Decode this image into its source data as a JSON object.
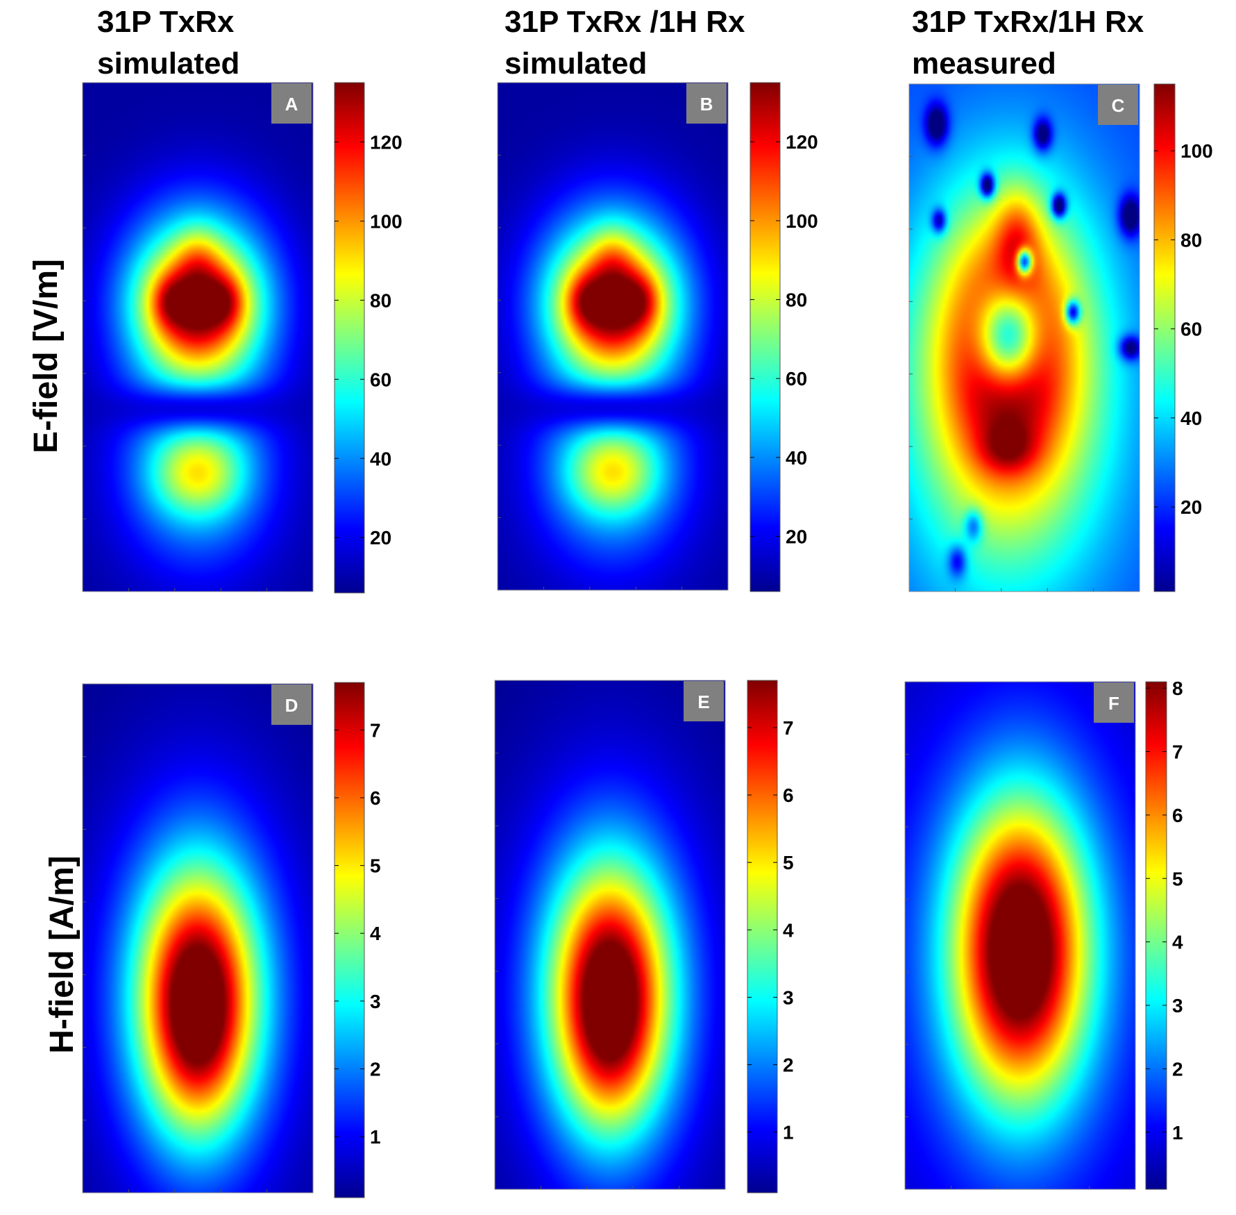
{
  "figure": {
    "row_labels": [
      "E-field [V/m]",
      "H-field [A/m]"
    ]
  },
  "chart_data": [
    {
      "type": "heatmap",
      "panel": "A",
      "title": [
        "31P TxRx",
        "simulated"
      ],
      "row_label": "E-field [V/m]",
      "colormap": "jet",
      "colorbar": {
        "range": [
          6,
          135
        ],
        "ticks": [
          20,
          40,
          60,
          80,
          100,
          120
        ]
      },
      "features": [
        {
          "kind": "lobe",
          "cx": 0.5,
          "cy": 0.43,
          "rx": 0.4,
          "ry": 0.23,
          "value": 80
        },
        {
          "kind": "lobe",
          "cx": 0.5,
          "cy": 0.44,
          "rx": 0.28,
          "ry": 0.13,
          "value": 55
        },
        {
          "kind": "lobe",
          "cx": 0.38,
          "cy": 0.43,
          "rx": 0.1,
          "ry": 0.06,
          "value": 20
        },
        {
          "kind": "lobe",
          "cx": 0.62,
          "cy": 0.43,
          "rx": 0.1,
          "ry": 0.06,
          "value": 20
        },
        {
          "kind": "lobe",
          "cx": 0.5,
          "cy": 0.34,
          "rx": 0.12,
          "ry": 0.08,
          "value": 15
        },
        {
          "kind": "lobe",
          "cx": 0.5,
          "cy": 0.77,
          "rx": 0.42,
          "ry": 0.24,
          "value": 38
        },
        {
          "kind": "lobe",
          "cx": 0.5,
          "cy": 0.77,
          "rx": 0.25,
          "ry": 0.1,
          "value": 40
        },
        {
          "kind": "hole",
          "cx": 0.5,
          "cy": 0.64,
          "rx": 0.35,
          "ry": 0.06,
          "value": -40
        }
      ],
      "base_value": 10
    },
    {
      "type": "heatmap",
      "panel": "B",
      "title": [
        "31P TxRx /1H Rx",
        "simulated"
      ],
      "row_label": "E-field [V/m]",
      "colormap": "jet",
      "colorbar": {
        "range": [
          6,
          135
        ],
        "ticks": [
          20,
          40,
          60,
          80,
          100,
          120
        ]
      },
      "features": [
        {
          "kind": "lobe",
          "cx": 0.5,
          "cy": 0.43,
          "rx": 0.4,
          "ry": 0.23,
          "value": 80
        },
        {
          "kind": "lobe",
          "cx": 0.5,
          "cy": 0.44,
          "rx": 0.28,
          "ry": 0.13,
          "value": 55
        },
        {
          "kind": "lobe",
          "cx": 0.38,
          "cy": 0.43,
          "rx": 0.1,
          "ry": 0.06,
          "value": 20
        },
        {
          "kind": "lobe",
          "cx": 0.62,
          "cy": 0.43,
          "rx": 0.1,
          "ry": 0.06,
          "value": 20
        },
        {
          "kind": "lobe",
          "cx": 0.5,
          "cy": 0.34,
          "rx": 0.12,
          "ry": 0.08,
          "value": 15
        },
        {
          "kind": "lobe",
          "cx": 0.5,
          "cy": 0.77,
          "rx": 0.42,
          "ry": 0.24,
          "value": 38
        },
        {
          "kind": "lobe",
          "cx": 0.5,
          "cy": 0.77,
          "rx": 0.25,
          "ry": 0.1,
          "value": 40
        },
        {
          "kind": "hole",
          "cx": 0.5,
          "cy": 0.64,
          "rx": 0.35,
          "ry": 0.06,
          "value": -40
        }
      ],
      "base_value": 10
    },
    {
      "type": "heatmap",
      "panel": "C",
      "title": [
        "31P TxRx/1H Rx",
        "measured"
      ],
      "row_label": "E-field [V/m]",
      "colormap": "jet",
      "colorbar": {
        "range": [
          1,
          115
        ],
        "ticks": [
          20,
          40,
          60,
          80,
          100
        ]
      },
      "features": [
        {
          "kind": "lobe",
          "cx": 0.43,
          "cy": 0.6,
          "rx": 0.58,
          "ry": 0.5,
          "value": 55
        },
        {
          "kind": "lobe",
          "cx": 0.43,
          "cy": 0.52,
          "rx": 0.36,
          "ry": 0.32,
          "value": 55
        },
        {
          "kind": "lobe",
          "cx": 0.47,
          "cy": 0.3,
          "rx": 0.12,
          "ry": 0.12,
          "value": 25
        },
        {
          "kind": "lobe",
          "cx": 0.43,
          "cy": 0.72,
          "rx": 0.15,
          "ry": 0.06,
          "value": 20
        },
        {
          "kind": "hole",
          "cx": 0.43,
          "cy": 0.5,
          "rx": 0.17,
          "ry": 0.12,
          "value": -80
        },
        {
          "kind": "hole",
          "cx": 0.12,
          "cy": 0.08,
          "rx": 0.06,
          "ry": 0.05,
          "value": -40
        },
        {
          "kind": "hole",
          "cx": 0.58,
          "cy": 0.1,
          "rx": 0.05,
          "ry": 0.04,
          "value": -40
        },
        {
          "kind": "hole",
          "cx": 0.34,
          "cy": 0.2,
          "rx": 0.04,
          "ry": 0.03,
          "value": -60
        },
        {
          "kind": "hole",
          "cx": 0.65,
          "cy": 0.24,
          "rx": 0.04,
          "ry": 0.03,
          "value": -60
        },
        {
          "kind": "hole",
          "cx": 0.13,
          "cy": 0.27,
          "rx": 0.04,
          "ry": 0.03,
          "value": -40
        },
        {
          "kind": "hole",
          "cx": 0.5,
          "cy": 0.35,
          "rx": 0.04,
          "ry": 0.03,
          "value": -80
        },
        {
          "kind": "hole",
          "cx": 0.71,
          "cy": 0.45,
          "rx": 0.04,
          "ry": 0.03,
          "value": -60
        },
        {
          "kind": "hole",
          "cx": 0.96,
          "cy": 0.26,
          "rx": 0.06,
          "ry": 0.05,
          "value": -40
        },
        {
          "kind": "hole",
          "cx": 0.96,
          "cy": 0.52,
          "rx": 0.06,
          "ry": 0.03,
          "value": -40
        },
        {
          "kind": "hole",
          "cx": 0.28,
          "cy": 0.87,
          "rx": 0.05,
          "ry": 0.04,
          "value": -30
        },
        {
          "kind": "hole",
          "cx": 0.21,
          "cy": 0.94,
          "rx": 0.05,
          "ry": 0.04,
          "value": -30
        }
      ],
      "base_value": 22
    },
    {
      "type": "heatmap",
      "panel": "D",
      "title": [],
      "row_label": "H-field [A/m]",
      "colormap": "jet",
      "colorbar": {
        "range": [
          0.1,
          7.7
        ],
        "ticks": [
          1,
          2,
          3,
          4,
          5,
          6,
          7
        ]
      },
      "features": [
        {
          "kind": "lobe",
          "cx": 0.5,
          "cy": 0.6,
          "rx": 0.6,
          "ry": 0.55,
          "value": 1.5
        },
        {
          "kind": "lobe",
          "cx": 0.5,
          "cy": 0.62,
          "rx": 0.33,
          "ry": 0.32,
          "value": 6.5
        },
        {
          "kind": "lobe",
          "cx": 0.5,
          "cy": 0.67,
          "rx": 0.2,
          "ry": 0.22,
          "value": 1.3
        }
      ],
      "base_value": 0.2
    },
    {
      "type": "heatmap",
      "panel": "E",
      "title": [],
      "row_label": "H-field [A/m]",
      "colormap": "jet",
      "colorbar": {
        "range": [
          0.1,
          7.7
        ],
        "ticks": [
          1,
          2,
          3,
          4,
          5,
          6,
          7
        ]
      },
      "features": [
        {
          "kind": "lobe",
          "cx": 0.5,
          "cy": 0.6,
          "rx": 0.6,
          "ry": 0.55,
          "value": 1.5
        },
        {
          "kind": "lobe",
          "cx": 0.5,
          "cy": 0.62,
          "rx": 0.33,
          "ry": 0.32,
          "value": 6.5
        },
        {
          "kind": "lobe",
          "cx": 0.5,
          "cy": 0.67,
          "rx": 0.2,
          "ry": 0.22,
          "value": 1.3
        }
      ],
      "base_value": 0.2
    },
    {
      "type": "heatmap",
      "panel": "F",
      "title": [],
      "row_label": "H-field [A/m]",
      "colormap": "jet",
      "colorbar": {
        "range": [
          0.1,
          8.1
        ],
        "ticks": [
          1,
          2,
          3,
          4,
          5,
          6,
          7,
          8
        ]
      },
      "features": [
        {
          "kind": "lobe",
          "cx": 0.5,
          "cy": 0.55,
          "rx": 0.75,
          "ry": 0.65,
          "value": 1.8
        },
        {
          "kind": "lobe",
          "cx": 0.5,
          "cy": 0.53,
          "rx": 0.35,
          "ry": 0.35,
          "value": 7.5
        }
      ],
      "base_value": 0.4
    }
  ]
}
